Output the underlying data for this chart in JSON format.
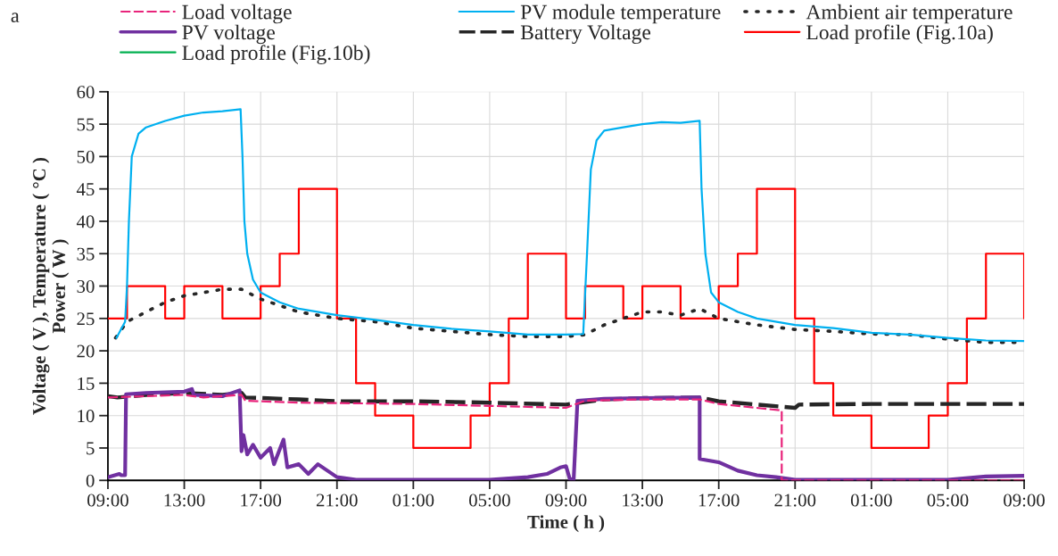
{
  "chart_data": {
    "type": "line",
    "xlabel": "Time ( h )",
    "ylabel": "Voltage ( V ), Temperature ( °C )\nPower ( W )",
    "annotations": [
      "a"
    ],
    "xlim": [
      "2000-01-01T09:00",
      "2000-01-03T09:00"
    ],
    "xticks": [
      {
        "value": "2000-01-01T09:00",
        "label": "09:00"
      },
      {
        "value": "2000-01-01T13:00",
        "label": "13:00"
      },
      {
        "value": "2000-01-01T17:00",
        "label": "17:00"
      },
      {
        "value": "2000-01-01T21:00",
        "label": "21:00"
      },
      {
        "value": "2000-01-02T01:00",
        "label": "01:00"
      },
      {
        "value": "2000-01-02T05:00",
        "label": "05:00"
      },
      {
        "value": "2000-01-02T09:00",
        "label": "09:00"
      },
      {
        "value": "2000-01-02T13:00",
        "label": "13:00"
      },
      {
        "value": "2000-01-02T17:00",
        "label": "17:00"
      },
      {
        "value": "2000-01-02T21:00",
        "label": "21:00"
      },
      {
        "value": "2000-01-03T01:00",
        "label": "01:00"
      },
      {
        "value": "2000-01-03T05:00",
        "label": "05:00"
      },
      {
        "value": "2000-01-03T09:00",
        "label": "09:00"
      }
    ],
    "ylim": [
      0,
      60
    ],
    "yticks": [
      0,
      5,
      10,
      15,
      20,
      25,
      30,
      35,
      40,
      45,
      50,
      55,
      60
    ],
    "grid": true,
    "legend": "top",
    "series": [
      {
        "name": "Load voltage",
        "color": "#e8247b",
        "line_style": "dashed",
        "x": [
          "2000-01-01T09:00",
          "2000-01-01T11:00",
          "2000-01-01T13:00",
          "2000-01-01T14:00",
          "2000-01-01T16:00",
          "2000-01-01T16:12",
          "2000-01-01T19:00",
          "2000-01-02T01:00",
          "2000-01-02T05:00",
          "2000-01-02T09:00",
          "2000-01-02T10:00",
          "2000-01-02T13:00",
          "2000-01-02T16:00",
          "2000-01-02T17:00",
          "2000-01-02T20:18",
          "2000-01-02T20:18",
          "2000-01-03T09:00"
        ],
        "values": [
          12.8,
          13,
          13.2,
          12.8,
          13.2,
          12.3,
          12,
          11.8,
          11.5,
          11.2,
          12.3,
          12.5,
          12.5,
          11.8,
          10.8,
          0,
          0
        ]
      },
      {
        "name": "PV module temperature",
        "color": "#00b0f0",
        "line_style": "solid",
        "x": [
          "2000-01-01T09:27",
          "2000-01-01T09:54",
          "2000-01-01T10:00",
          "2000-01-01T10:06",
          "2000-01-01T10:15",
          "2000-01-01T10:36",
          "2000-01-01T11:00",
          "2000-01-01T12:00",
          "2000-01-01T13:00",
          "2000-01-01T14:00",
          "2000-01-01T15:00",
          "2000-01-01T15:57",
          "2000-01-01T16:03",
          "2000-01-01T16:09",
          "2000-01-01T16:18",
          "2000-01-01T16:36",
          "2000-01-01T17:00",
          "2000-01-01T18:00",
          "2000-01-01T19:00",
          "2000-01-01T21:00",
          "2000-01-01T23:00",
          "2000-01-02T01:00",
          "2000-01-02T03:00",
          "2000-01-02T05:00",
          "2000-01-02T07:00",
          "2000-01-02T09:00",
          "2000-01-02T09:54",
          "2000-01-02T10:06",
          "2000-01-02T10:18",
          "2000-01-02T10:36",
          "2000-01-02T11:00",
          "2000-01-02T12:00",
          "2000-01-02T13:00",
          "2000-01-02T14:00",
          "2000-01-02T15:00",
          "2000-01-02T16:00",
          "2000-01-02T16:06",
          "2000-01-02T16:18",
          "2000-01-02T16:36",
          "2000-01-02T17:00",
          "2000-01-02T18:00",
          "2000-01-02T19:00",
          "2000-01-02T21:00",
          "2000-01-02T23:00",
          "2000-01-03T01:00",
          "2000-01-03T03:00",
          "2000-01-03T05:00",
          "2000-01-03T06:00",
          "2000-01-03T07:00",
          "2000-01-03T09:00"
        ],
        "values": [
          22,
          24.5,
          30,
          40,
          50,
          53.5,
          54.5,
          55.5,
          56.3,
          56.8,
          57,
          57.3,
          50,
          40,
          35,
          31,
          29,
          27.5,
          26.5,
          25.5,
          24.8,
          24,
          23.4,
          23,
          22.5,
          22.5,
          22.6,
          35,
          48,
          52.5,
          54,
          54.5,
          55,
          55.3,
          55.2,
          55.5,
          45,
          35,
          29,
          27.5,
          26,
          25,
          24,
          23.5,
          22.8,
          22.5,
          22,
          21.8,
          21.6,
          21.5
        ]
      },
      {
        "name": "Ambient air temperature",
        "color": "#262626",
        "line_style": "dotted",
        "x": [
          "2000-01-01T09:24",
          "2000-01-01T10:00",
          "2000-01-01T11:00",
          "2000-01-01T12:00",
          "2000-01-01T13:00",
          "2000-01-01T14:00",
          "2000-01-01T15:00",
          "2000-01-01T16:00",
          "2000-01-01T17:00",
          "2000-01-01T18:00",
          "2000-01-01T19:00",
          "2000-01-01T21:00",
          "2000-01-01T23:00",
          "2000-01-02T01:00",
          "2000-01-02T03:00",
          "2000-01-02T05:00",
          "2000-01-02T07:00",
          "2000-01-02T09:00",
          "2000-01-02T10:00",
          "2000-01-02T11:00",
          "2000-01-02T12:00",
          "2000-01-02T13:00",
          "2000-01-02T14:00",
          "2000-01-02T15:00",
          "2000-01-02T16:00",
          "2000-01-02T17:00",
          "2000-01-02T19:00",
          "2000-01-02T21:00",
          "2000-01-02T23:00",
          "2000-01-03T01:00",
          "2000-01-03T03:00",
          "2000-01-03T05:00",
          "2000-01-03T07:00",
          "2000-01-03T09:00"
        ],
        "values": [
          22,
          24.5,
          26,
          27.5,
          28.5,
          29,
          29.5,
          29.5,
          28,
          27,
          26,
          25,
          24.5,
          23.5,
          23,
          22.5,
          22.2,
          22.2,
          22.5,
          24,
          25,
          26,
          26,
          25.5,
          26.5,
          25,
          24,
          23.3,
          23,
          22.6,
          22.5,
          21.8,
          21.3,
          21.3
        ]
      },
      {
        "name": "PV voltage",
        "color": "#7030a0",
        "line_style": "solid",
        "x": [
          "2000-01-01T09:00",
          "2000-01-01T09:36",
          "2000-01-01T09:42",
          "2000-01-01T09:54",
          "2000-01-01T09:57",
          "2000-01-01T11:00",
          "2000-01-01T13:00",
          "2000-01-01T13:24",
          "2000-01-01T13:30",
          "2000-01-01T15:00",
          "2000-01-01T15:54",
          "2000-01-01T16:00",
          "2000-01-01T16:06",
          "2000-01-01T16:18",
          "2000-01-01T16:36",
          "2000-01-01T17:00",
          "2000-01-01T17:30",
          "2000-01-01T17:42",
          "2000-01-01T18:12",
          "2000-01-01T18:24",
          "2000-01-01T19:00",
          "2000-01-01T19:30",
          "2000-01-01T20:00",
          "2000-01-01T20:30",
          "2000-01-01T21:00",
          "2000-01-01T22:00",
          "2000-01-02T05:00",
          "2000-01-02T07:00",
          "2000-01-02T08:00",
          "2000-01-02T08:42",
          "2000-01-02T09:00",
          "2000-01-02T09:12",
          "2000-01-02T09:24",
          "2000-01-02T09:36",
          "2000-01-02T11:00",
          "2000-01-02T13:00",
          "2000-01-02T16:00",
          "2000-01-02T16:00",
          "2000-01-02T17:00",
          "2000-01-02T18:00",
          "2000-01-02T19:00",
          "2000-01-02T20:00",
          "2000-01-02T21:00",
          "2000-01-03T05:00",
          "2000-01-03T07:00",
          "2000-01-03T09:00"
        ],
        "values": [
          0.5,
          1,
          0.8,
          0.8,
          13.3,
          13.5,
          13.7,
          14.1,
          13.2,
          13,
          13.9,
          4.5,
          7,
          4,
          5.5,
          3.5,
          5,
          2.5,
          6.3,
          2,
          2.5,
          1,
          2.5,
          1.5,
          0.5,
          0.1,
          0.1,
          0.5,
          1,
          2,
          2.2,
          0.2,
          0.1,
          12.3,
          12.6,
          12.7,
          12.8,
          3.3,
          2.8,
          1.5,
          0.8,
          0.5,
          0.1,
          0.1,
          0.6,
          0.7
        ]
      },
      {
        "name": "Battery Voltage",
        "color": "#262626",
        "line_style": "dashed",
        "x": [
          "2000-01-01T09:00",
          "2000-01-01T09:30",
          "2000-01-01T11:00",
          "2000-01-01T13:00",
          "2000-01-01T15:00",
          "2000-01-01T16:00",
          "2000-01-01T16:12",
          "2000-01-01T19:00",
          "2000-01-01T21:00",
          "2000-01-02T01:00",
          "2000-01-02T05:00",
          "2000-01-02T09:00",
          "2000-01-02T11:00",
          "2000-01-02T13:00",
          "2000-01-02T16:00",
          "2000-01-02T17:00",
          "2000-01-02T21:00",
          "2000-01-02T21:12",
          "2000-01-03T01:00",
          "2000-01-03T09:00"
        ],
        "values": [
          13,
          12.8,
          13.2,
          13.5,
          13.2,
          13.5,
          12.8,
          12.5,
          12.2,
          12.2,
          12,
          11.7,
          12.5,
          12.7,
          12.8,
          12.2,
          11.2,
          11.7,
          11.8,
          11.8
        ]
      },
      {
        "name": "Load profile (Fig.10a)",
        "color": "#ff0000",
        "type": "step",
        "line_style": "solid",
        "x": [
          "2000-01-01T09:00",
          "2000-01-01T10:00",
          "2000-01-01T12:00",
          "2000-01-01T13:00",
          "2000-01-01T15:00",
          "2000-01-01T17:00",
          "2000-01-01T18:00",
          "2000-01-01T19:00",
          "2000-01-01T21:00",
          "2000-01-01T22:00",
          "2000-01-01T23:00",
          "2000-01-02T01:00",
          "2000-01-02T04:00",
          "2000-01-02T05:00",
          "2000-01-02T06:00",
          "2000-01-02T07:00",
          "2000-01-02T09:00",
          "2000-01-02T10:00",
          "2000-01-02T12:00",
          "2000-01-02T13:00",
          "2000-01-02T15:00",
          "2000-01-02T17:00",
          "2000-01-02T18:00",
          "2000-01-02T19:00",
          "2000-01-02T21:00",
          "2000-01-02T22:00",
          "2000-01-02T23:00",
          "2000-01-03T01:00",
          "2000-01-03T04:00",
          "2000-01-03T05:00",
          "2000-01-03T06:00",
          "2000-01-03T07:00",
          "2000-01-03T09:00"
        ],
        "values": [
          25,
          30,
          25,
          30,
          25,
          30,
          35,
          45,
          25,
          15,
          10,
          5,
          10,
          15,
          25,
          35,
          25,
          30,
          25,
          30,
          25,
          30,
          35,
          45,
          25,
          15,
          10,
          5,
          10,
          15,
          25,
          35,
          25
        ]
      },
      {
        "name": "Load profile (Fig.10b)",
        "color": "#00b050",
        "type": "step",
        "line_style": "solid"
      }
    ]
  }
}
